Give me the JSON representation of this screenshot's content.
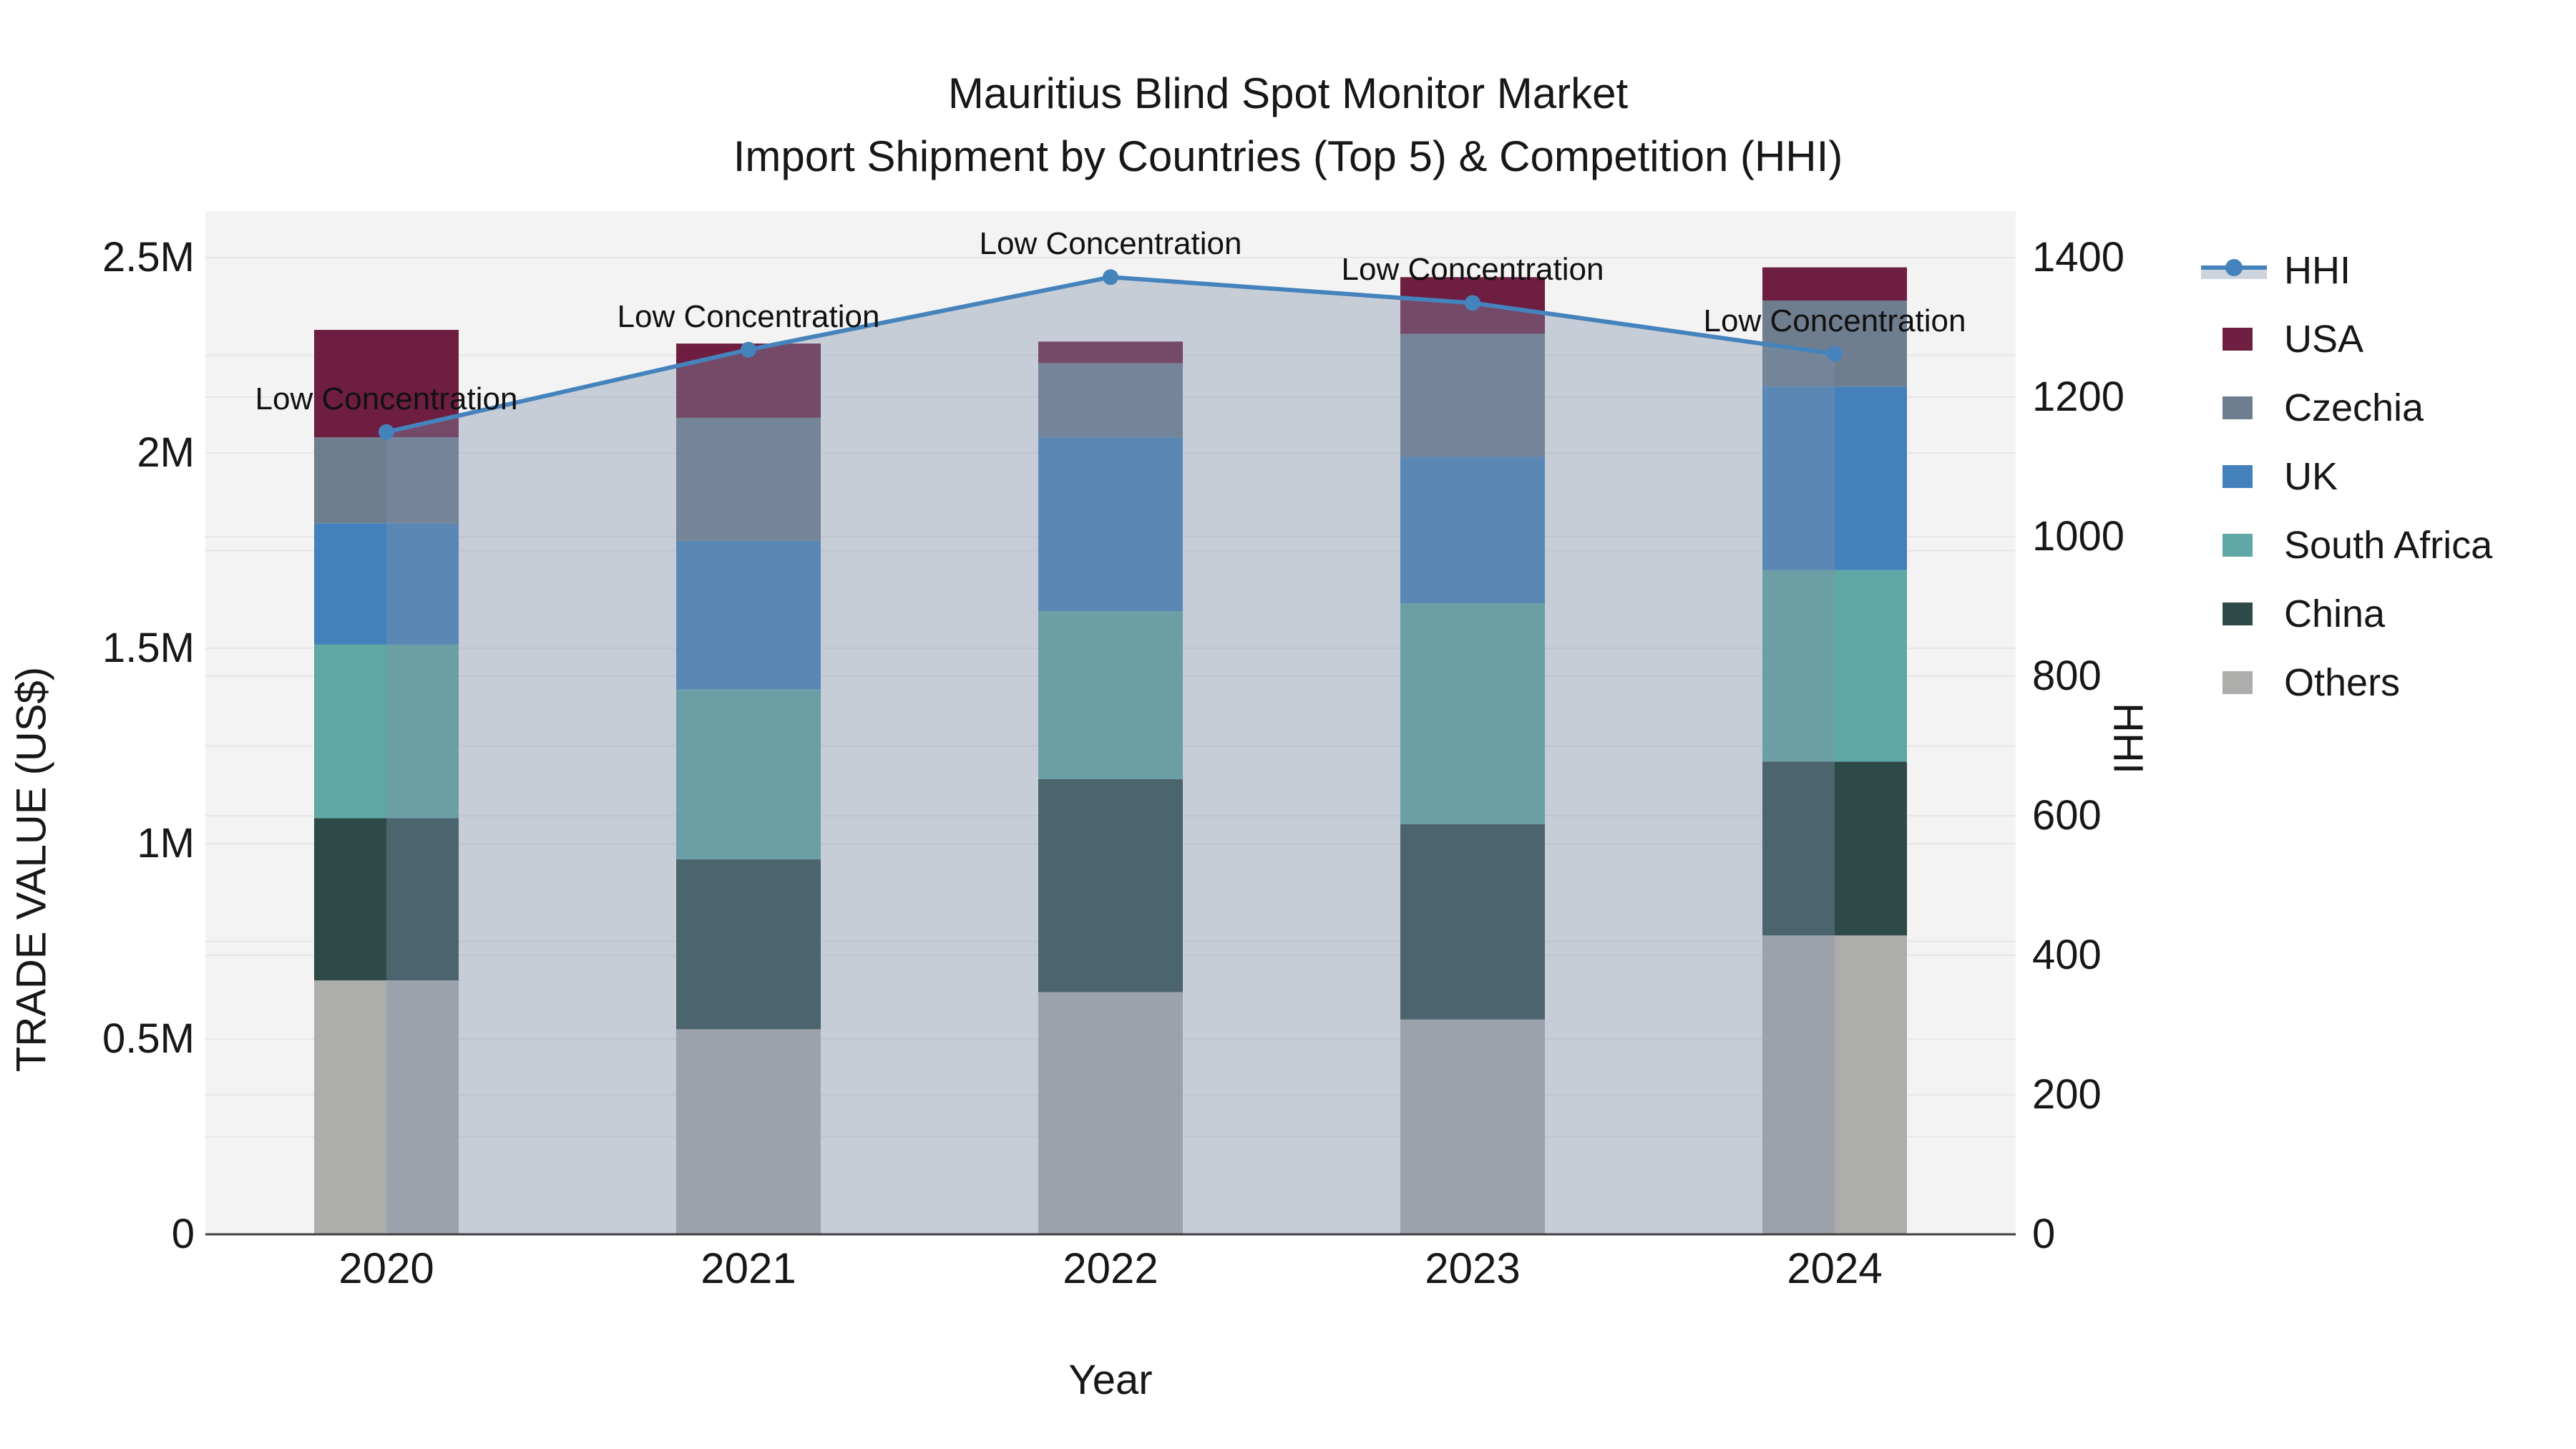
{
  "title": {
    "line1": "Mauritius Blind Spot Monitor Market",
    "line2": "Import Shipment by Countries (Top 5) & Competition (HHI)"
  },
  "chart_data": {
    "type": "bar",
    "subtype": "stacked-bars-with-line-area-dual-axis",
    "categories": [
      "2020",
      "2021",
      "2022",
      "2023",
      "2024"
    ],
    "xlabel": "Year",
    "ylabel_left": "TRADE VALUE (US$)",
    "ylabel_right": "HHI",
    "y_left": {
      "min": 0,
      "max": 2500000,
      "tick_values": [
        0,
        500000,
        1000000,
        1500000,
        2000000,
        2500000
      ],
      "tick_labels": [
        "0",
        "0.5M",
        "1M",
        "1.5M",
        "2M",
        "2.5M"
      ],
      "minor_grid_step": 250000
    },
    "y_right": {
      "min": 0,
      "max": 1400,
      "tick_values": [
        0,
        200,
        400,
        600,
        800,
        1000,
        1200,
        1400
      ],
      "tick_labels": [
        "0",
        "200",
        "400",
        "600",
        "800",
        "1000",
        "1200",
        "1400"
      ]
    },
    "grid": "horizontal",
    "legend_position": "right",
    "series": [
      {
        "name": "Others",
        "color": "#adadab",
        "values": [
          650000,
          525000,
          620000,
          550000,
          765000
        ]
      },
      {
        "name": "China",
        "color": "#2d4a48",
        "values": [
          415000,
          435000,
          545000,
          500000,
          445000
        ]
      },
      {
        "name": "South Africa",
        "color": "#5fa7a4",
        "values": [
          445000,
          435000,
          430000,
          565000,
          490000
        ]
      },
      {
        "name": "UK",
        "color": "#4481bc",
        "values": [
          310000,
          380000,
          445000,
          375000,
          470000
        ]
      },
      {
        "name": "Czechia",
        "color": "#6f7e8f",
        "values": [
          220000,
          315000,
          190000,
          315000,
          220000
        ]
      },
      {
        "name": "USA",
        "color": "#6e1e40",
        "values": [
          275000,
          190000,
          55000,
          145000,
          85000
        ]
      }
    ],
    "line_series": {
      "name": "HHI",
      "color": "#4583bd",
      "area_fill": "rgba(130,144,170,0.38)",
      "values": [
        1150,
        1268,
        1372,
        1335,
        1262
      ],
      "point_annotations": [
        "Low Concentration",
        "Low Concentration",
        "Low Concentration",
        "Low Concentration",
        "Low Concentration"
      ]
    },
    "legend": [
      {
        "label": "HHI",
        "kind": "line"
      },
      {
        "label": "USA",
        "kind": "swatch",
        "color": "#6e1e40"
      },
      {
        "label": "Czechia",
        "kind": "swatch",
        "color": "#6f7e8f"
      },
      {
        "label": "UK",
        "kind": "swatch",
        "color": "#4481bc"
      },
      {
        "label": "South Africa",
        "kind": "swatch",
        "color": "#5fa7a4"
      },
      {
        "label": "China",
        "kind": "swatch",
        "color": "#2d4a48"
      },
      {
        "label": "Others",
        "kind": "swatch",
        "color": "#adadab"
      }
    ]
  },
  "colors": {
    "plot_bg": "#f3f3f3",
    "grid": "#e6e6e6",
    "axis_line": "#404040",
    "text": "#171717"
  }
}
